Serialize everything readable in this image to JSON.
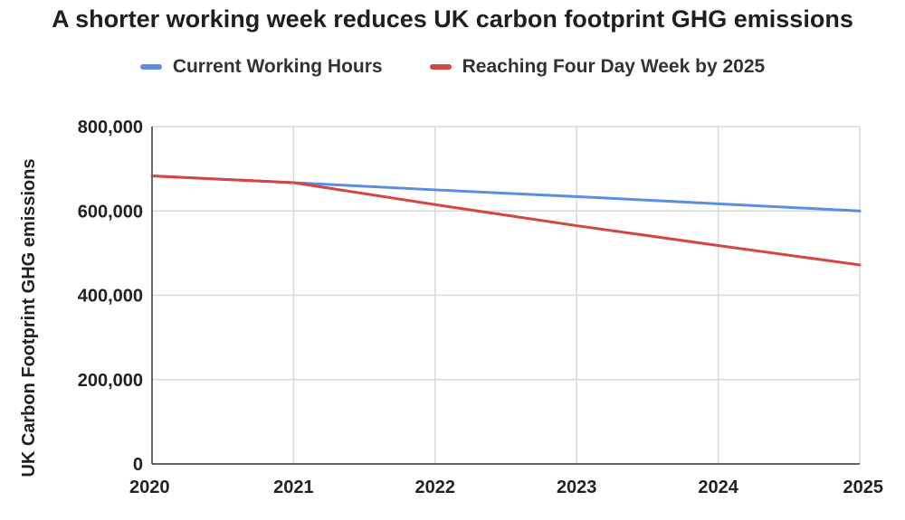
{
  "chart_data": {
    "type": "line",
    "title": "A shorter working week reduces UK carbon footprint GHG emissions",
    "xlabel": "",
    "ylabel": "UK Carbon Footprint GHG emissions",
    "x": [
      "2020",
      "2021",
      "2022",
      "2023",
      "2024",
      "2025"
    ],
    "ylim": [
      0,
      800000
    ],
    "yticks": [
      0,
      200000,
      400000,
      600000,
      800000
    ],
    "ytick_labels": [
      "0",
      "200,000",
      "400,000",
      "600,000",
      "800,000"
    ],
    "grid": true,
    "legend_position": "top",
    "series": [
      {
        "name": "Current Working Hours",
        "color": "#5b8de0",
        "values": [
          683000,
          667000,
          650000,
          634000,
          617000,
          600000
        ]
      },
      {
        "name": "Reaching Four Day Week by 2025",
        "color": "#d64541",
        "values": [
          683000,
          667000,
          615000,
          565000,
          518000,
          472000
        ]
      }
    ]
  }
}
